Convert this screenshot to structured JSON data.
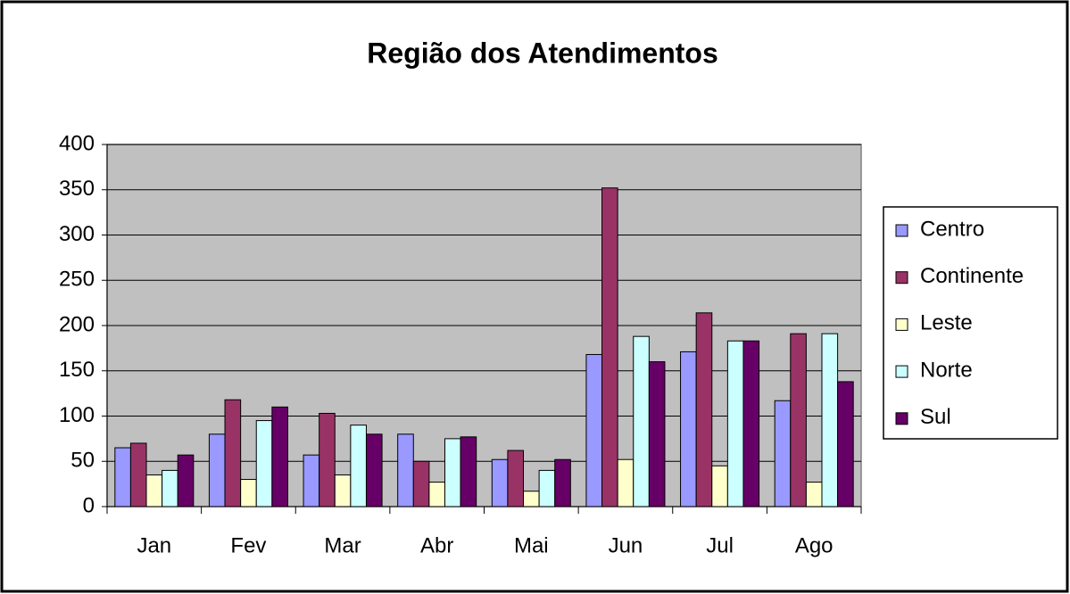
{
  "chart_data": {
    "type": "bar",
    "title": "Região dos Atendimentos",
    "categories": [
      "Jan",
      "Fev",
      "Mar",
      "Abr",
      "Mai",
      "Jun",
      "Jul",
      "Ago"
    ],
    "series": [
      {
        "name": "Centro",
        "color": "#9999ff",
        "values": [
          65,
          80,
          57,
          80,
          52,
          168,
          171,
          117
        ]
      },
      {
        "name": "Continente",
        "color": "#993366",
        "values": [
          70,
          118,
          103,
          50,
          62,
          352,
          214,
          191
        ]
      },
      {
        "name": "Leste",
        "color": "#ffffcc",
        "values": [
          35,
          30,
          35,
          27,
          17,
          52,
          45,
          27
        ]
      },
      {
        "name": "Norte",
        "color": "#ccffff",
        "values": [
          40,
          95,
          90,
          75,
          40,
          188,
          183,
          191
        ]
      },
      {
        "name": "Sul",
        "color": "#660066",
        "values": [
          57,
          110,
          80,
          77,
          52,
          160,
          183,
          138
        ]
      }
    ],
    "ylim": [
      0,
      400
    ],
    "yticks": [
      0,
      50,
      100,
      150,
      200,
      250,
      300,
      350,
      400
    ],
    "grid": true,
    "legend": "right",
    "plot_background": "#c0c0c0"
  }
}
